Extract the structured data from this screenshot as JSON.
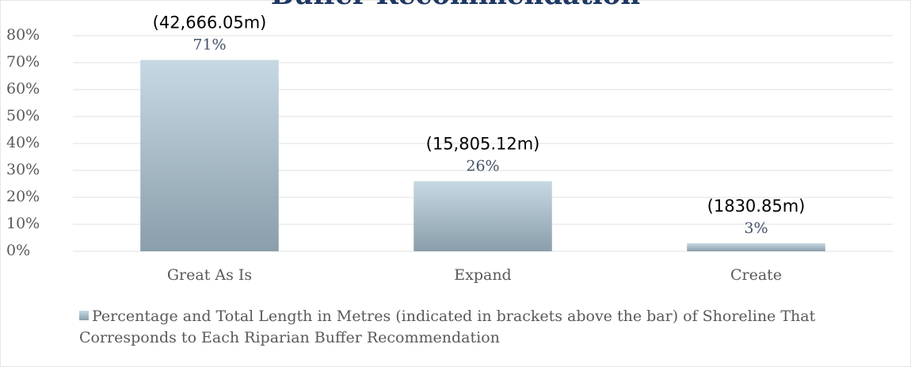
{
  "chart_data": {
    "type": "bar",
    "title": "Buffer Recommendation",
    "categories": [
      "Great As Is",
      "Expand",
      "Create"
    ],
    "series": [
      {
        "name": "Percentage and Total Length in Metres (indicated in brackets above the bar) of Shoreline That Corresponds to Each Riparian Buffer Recommendation",
        "color": "#8a9eab",
        "values": [
          71,
          26,
          3
        ],
        "value_labels": [
          "71%",
          "26%",
          "3%"
        ]
      }
    ],
    "annotations": [
      "(42,666.05m)",
      "(15,805.12m)",
      "(1830.85m)"
    ],
    "ylim": [
      0,
      80
    ],
    "yticks": [
      {
        "value": 0,
        "label": "0%"
      },
      {
        "value": 10,
        "label": "10%"
      },
      {
        "value": 20,
        "label": "20%"
      },
      {
        "value": 30,
        "label": "30%"
      },
      {
        "value": 40,
        "label": "40%"
      },
      {
        "value": 50,
        "label": "50%"
      },
      {
        "value": 60,
        "label": "60%"
      },
      {
        "value": 70,
        "label": "70%"
      },
      {
        "value": 80,
        "label": "80%"
      }
    ],
    "grid": true,
    "legend": "bottom"
  }
}
